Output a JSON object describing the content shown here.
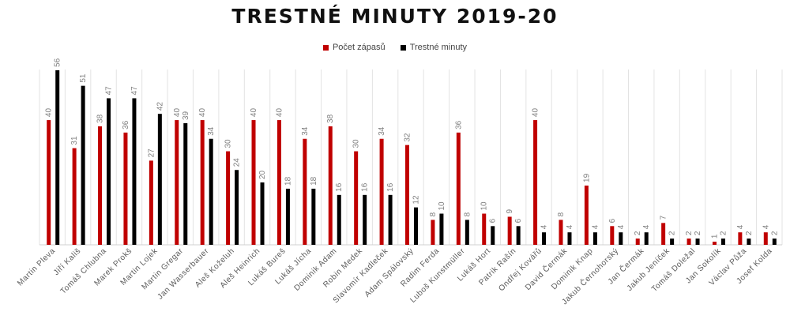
{
  "chart_data": {
    "type": "bar",
    "title": "TRESTNÉ MINUTY 2019-20",
    "xlabel": "",
    "ylabel": "",
    "ylim": [
      0,
      58
    ],
    "grid": "vertical separators",
    "legend_position": "top-center",
    "categories": [
      "Martin Pleva",
      "Jiří Kališ",
      "Tomáš Chlubna",
      "Marek Prokš",
      "Martin Lojek",
      "Martin Gregar",
      "Jan Wasserbauer",
      "Aleš Koželuh",
      "Aleš Heinrich",
      "Lukáš Bureš",
      "Lukáš Jícha",
      "Dominik Adam",
      "Robin Medek",
      "Slavomír Kadleček",
      "Adam Spálovský",
      "Radim Ferda",
      "Luboš Kunstmüller",
      "Lukáš Hort",
      "Patrik Rašín",
      "Ondřej Kovářů",
      "David Čermák",
      "Dominik Knap",
      "Jakub Černohorský",
      "Jan Čermák",
      "Jakub Jeníček",
      "Tomáš Doležal",
      "Jan Sokolík",
      "Václav Půža",
      "Josef Kolda"
    ],
    "series": [
      {
        "name": "Počet zápasů",
        "color": "#c00000",
        "values": [
          40,
          31,
          38,
          36,
          27,
          40,
          40,
          30,
          40,
          40,
          34,
          38,
          30,
          34,
          32,
          8,
          36,
          10,
          9,
          40,
          8,
          19,
          6,
          2,
          7,
          2,
          1,
          4,
          4
        ]
      },
      {
        "name": "Trestné minuty",
        "color": "#000000",
        "values": [
          56,
          51,
          47,
          47,
          42,
          39,
          34,
          24,
          20,
          18,
          18,
          16,
          16,
          16,
          12,
          10,
          8,
          6,
          6,
          4,
          4,
          4,
          4,
          4,
          2,
          2,
          2,
          2,
          2
        ]
      }
    ]
  }
}
